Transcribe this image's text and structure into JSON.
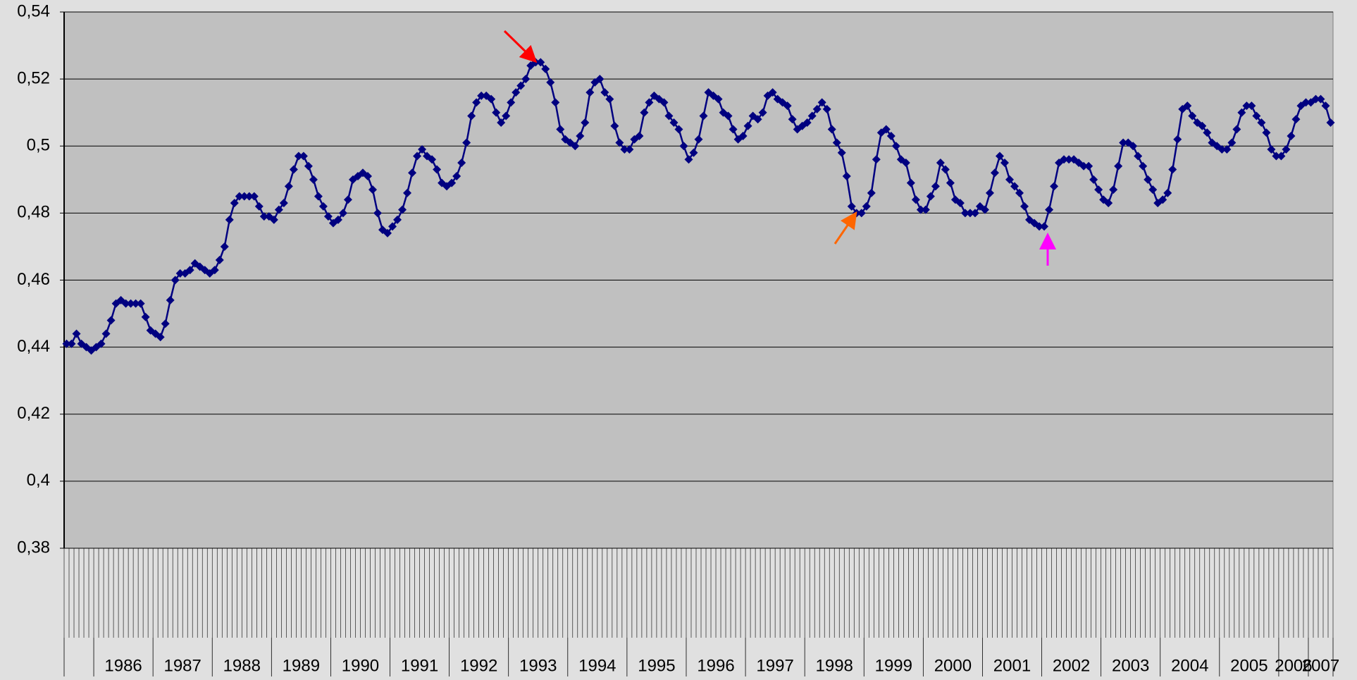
{
  "chart_data": {
    "type": "line",
    "color": "#000080",
    "values": [
      0.441,
      0.441,
      0.444,
      0.441,
      0.44,
      0.439,
      0.44,
      0.441,
      0.444,
      0.448,
      0.453,
      0.454,
      0.453,
      0.453,
      0.453,
      0.453,
      0.449,
      0.445,
      0.444,
      0.443,
      0.447,
      0.454,
      0.46,
      0.462,
      0.462,
      0.463,
      0.465,
      0.464,
      0.463,
      0.462,
      0.463,
      0.466,
      0.47,
      0.478,
      0.483,
      0.485,
      0.485,
      0.485,
      0.485,
      0.482,
      0.479,
      0.479,
      0.478,
      0.481,
      0.483,
      0.488,
      0.493,
      0.497,
      0.497,
      0.494,
      0.49,
      0.485,
      0.482,
      0.479,
      0.477,
      0.478,
      0.48,
      0.484,
      0.49,
      0.491,
      0.492,
      0.491,
      0.487,
      0.48,
      0.475,
      0.474,
      0.476,
      0.478,
      0.481,
      0.486,
      0.492,
      0.497,
      0.499,
      0.497,
      0.496,
      0.493,
      0.489,
      0.488,
      0.489,
      0.491,
      0.495,
      0.501,
      0.509,
      0.513,
      0.515,
      0.515,
      0.514,
      0.51,
      0.507,
      0.509,
      0.513,
      0.516,
      0.518,
      0.52,
      0.524,
      0.525,
      0.525,
      0.523,
      0.519,
      0.513,
      0.505,
      0.502,
      0.501,
      0.5,
      0.503,
      0.507,
      0.516,
      0.519,
      0.52,
      0.516,
      0.514,
      0.506,
      0.501,
      0.499,
      0.499,
      0.502,
      0.503,
      0.51,
      0.513,
      0.515,
      0.514,
      0.513,
      0.509,
      0.507,
      0.505,
      0.5,
      0.496,
      0.498,
      0.502,
      0.509,
      0.516,
      0.515,
      0.514,
      0.51,
      0.509,
      0.505,
      0.502,
      0.503,
      0.506,
      0.509,
      0.508,
      0.51,
      0.515,
      0.516,
      0.514,
      0.513,
      0.512,
      0.508,
      0.505,
      0.506,
      0.507,
      0.509,
      0.511,
      0.513,
      0.511,
      0.505,
      0.501,
      0.498,
      0.491,
      0.482,
      0.48,
      0.48,
      0.482,
      0.486,
      0.496,
      0.504,
      0.505,
      0.503,
      0.5,
      0.496,
      0.495,
      0.489,
      0.484,
      0.481,
      0.481,
      0.485,
      0.488,
      0.495,
      0.493,
      0.489,
      0.484,
      0.483,
      0.48,
      0.48,
      0.48,
      0.482,
      0.481,
      0.486,
      0.492,
      0.497,
      0.495,
      0.49,
      0.488,
      0.486,
      0.482,
      0.478,
      0.477,
      0.476,
      0.476,
      0.481,
      0.488,
      0.495,
      0.496,
      0.496,
      0.496,
      0.495,
      0.494,
      0.494,
      0.49,
      0.487,
      0.484,
      0.483,
      0.487,
      0.494,
      0.501,
      0.501,
      0.5,
      0.497,
      0.494,
      0.49,
      0.487,
      0.483,
      0.484,
      0.486,
      0.493,
      0.502,
      0.511,
      0.512,
      0.509,
      0.507,
      0.506,
      0.504,
      0.501,
      0.5,
      0.499,
      0.499,
      0.501,
      0.505,
      0.51,
      0.512,
      0.512,
      0.509,
      0.507,
      0.504,
      0.499,
      0.497,
      0.497,
      0.499,
      0.503,
      0.508,
      0.512,
      0.513,
      0.513,
      0.514,
      0.514,
      0.512,
      0.507
    ],
    "x_groups": {
      "labels": [
        null,
        "1986",
        "1987",
        "1988",
        "1989",
        "1990",
        "1991",
        "1992",
        "1993",
        "1994",
        "1995",
        "1996",
        "1997",
        "1998",
        "1999",
        "2000",
        "2001",
        "2002",
        "2003",
        "2004",
        "2005",
        "2006",
        "2007"
      ],
      "counts": [
        6,
        12,
        12,
        12,
        12,
        12,
        12,
        12,
        12,
        12,
        12,
        12,
        12,
        12,
        12,
        12,
        12,
        12,
        12,
        12,
        12,
        6,
        5
      ]
    },
    "ylim": [
      0.38,
      0.54
    ],
    "yticks": [
      {
        "value": 0.38,
        "label": "0,38"
      },
      {
        "value": 0.4,
        "label": "0,4"
      },
      {
        "value": 0.42,
        "label": "0,42"
      },
      {
        "value": 0.44,
        "label": "0,44"
      },
      {
        "value": 0.46,
        "label": "0,46"
      },
      {
        "value": 0.48,
        "label": "0,48"
      },
      {
        "value": 0.5,
        "label": "0,5"
      },
      {
        "value": 0.52,
        "label": "0,52"
      },
      {
        "value": 0.54,
        "label": "0,54"
      }
    ],
    "grid": true
  }
}
